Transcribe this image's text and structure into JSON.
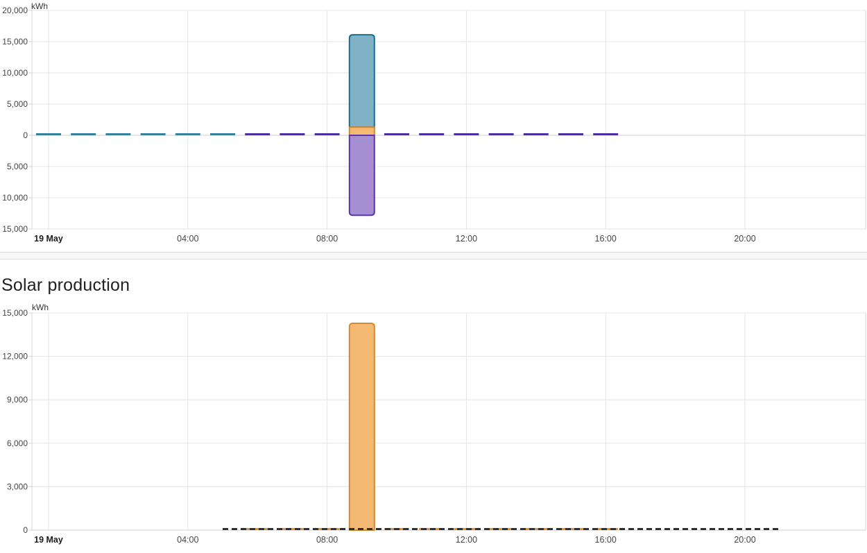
{
  "solar_title": "Solar production",
  "colors": {
    "teal": {
      "fill": "#7fb2c6",
      "border": "#1d6d8c",
      "dash": "#35809c"
    },
    "orange": {
      "fill": "#f4ba74",
      "border": "#cf8a2e",
      "dash": "#e0922f"
    },
    "purple": {
      "fill": "#a58fd2",
      "border": "#5936a8",
      "dash": "#4b2f9f"
    },
    "forecast_dash": "#303030",
    "grid": "#e4e4e4",
    "axis_border": "#d4d4d4",
    "zero_axis": "#cfcfcf",
    "label": "#454545",
    "bold_label": "#1b1b1b"
  },
  "chart_data": [
    {
      "id": "energy-usage",
      "type": "bar",
      "unit": "kWh",
      "x_ticks": [
        {
          "hour": 0,
          "label": "19 May",
          "bold": true
        },
        {
          "hour": 4,
          "label": "04:00"
        },
        {
          "hour": 8,
          "label": "08:00"
        },
        {
          "hour": 12,
          "label": "12:00"
        },
        {
          "hour": 16,
          "label": "16:00"
        },
        {
          "hour": 20,
          "label": "20:00"
        }
      ],
      "y_axis": {
        "min": -15000,
        "max": 20000,
        "step": 5000,
        "labels": [
          "20,000",
          "15,000",
          "10,000",
          "5,000",
          "0",
          "5,000",
          "10,000",
          "15,000"
        ]
      },
      "series": [
        {
          "name": "grid-consumption",
          "color_key": "teal",
          "zero_value_hours": [
            0,
            1,
            2,
            3,
            4,
            5
          ],
          "bars": [
            {
              "hour": 9,
              "from": 1300,
              "to": 16100,
              "round": "top"
            }
          ]
        },
        {
          "name": "solar-consumption",
          "color_key": "orange",
          "zero_value_hours": [],
          "bars": [
            {
              "hour": 9,
              "from": 0,
              "to": 1300,
              "round": "none"
            }
          ]
        },
        {
          "name": "return-to-grid",
          "color_key": "purple",
          "zero_value_hours": [
            6,
            7,
            8,
            10,
            11,
            12,
            13,
            14,
            15,
            16
          ],
          "bars": [
            {
              "hour": 9,
              "from": 0,
              "to": -12800,
              "round": "bottom"
            }
          ]
        }
      ]
    },
    {
      "id": "solar-production",
      "type": "bar",
      "title": "Solar production",
      "unit": "kWh",
      "x_ticks": [
        {
          "hour": 0,
          "label": "19 May",
          "bold": true
        },
        {
          "hour": 4,
          "label": "04:00"
        },
        {
          "hour": 8,
          "label": "08:00"
        },
        {
          "hour": 12,
          "label": "12:00"
        },
        {
          "hour": 16,
          "label": "16:00"
        },
        {
          "hour": 20,
          "label": "20:00"
        }
      ],
      "y_axis": {
        "min": 0,
        "max": 15000,
        "step": 3000,
        "labels": [
          "15,000",
          "12,000",
          "9,000",
          "6,000",
          "3,000",
          "0"
        ]
      },
      "series": [
        {
          "name": "solar-production",
          "color_key": "orange",
          "zero_value_hours": [
            6,
            7,
            8,
            10,
            11,
            12,
            13,
            14,
            15,
            16
          ],
          "bars": [
            {
              "hour": 9,
              "from": 0,
              "to": 14280,
              "round": "top"
            }
          ]
        },
        {
          "name": "solar-forecast",
          "type": "dashed-line",
          "color_key": "forecast_dash",
          "value": 0,
          "from_hour": 5,
          "to_hour": 21
        }
      ]
    }
  ]
}
